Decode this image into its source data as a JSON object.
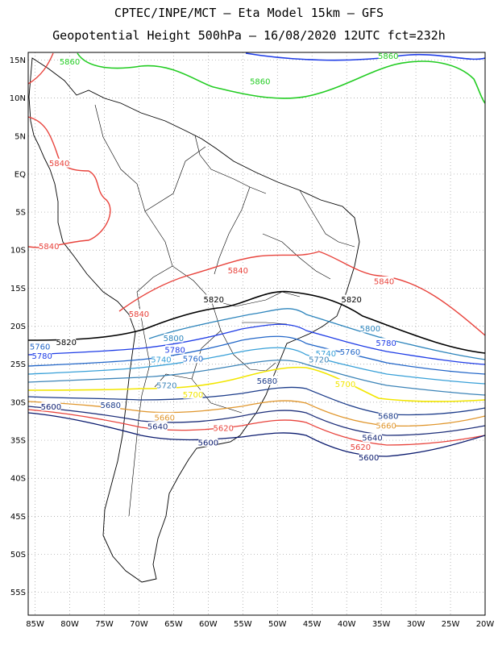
{
  "header": {
    "title_line1": "CPTEC/INPE/MCT  –  Eta Model 15km  –  GFS",
    "title_line2": "Geopotential Height 500hPa  –  16/08/2020 12UTC fct=232h"
  },
  "map": {
    "lon_range": [
      -86,
      -20
    ],
    "lat_range": [
      -58,
      16
    ],
    "lat_ticks": [
      "15N",
      "10N",
      "5N",
      "EQ",
      "5S",
      "10S",
      "15S",
      "20S",
      "25S",
      "30S",
      "35S",
      "40S",
      "45S",
      "50S",
      "55S"
    ],
    "lat_tick_values": [
      15,
      10,
      5,
      0,
      -5,
      -10,
      -15,
      -20,
      -25,
      -30,
      -35,
      -40,
      -45,
      -50,
      -55
    ],
    "lon_ticks": [
      "85W",
      "80W",
      "75W",
      "70W",
      "65W",
      "60W",
      "55W",
      "50W",
      "45W",
      "40W",
      "35W",
      "30W",
      "25W",
      "20W"
    ],
    "lon_tick_values": [
      -85,
      -80,
      -75,
      -70,
      -65,
      -60,
      -55,
      -50,
      -45,
      -40,
      -35,
      -30,
      -25,
      -20
    ],
    "grid": "dotted",
    "contour_colors": {
      "5600": "#0a1a6e",
      "5620": "#e8433c",
      "5640": "#1e2f7a",
      "5660": "#e0962c",
      "5680": "#1c3c8a",
      "5700": "#f2e600",
      "5720": "#3c84b8",
      "5740": "#38a0d8",
      "5760": "#2266c8",
      "5780": "#1e3ce6",
      "5800": "#2c84bc",
      "5820": "#000000",
      "5840": "#e8433c",
      "5860": "#22cc22",
      "5880": "#1e3ce6"
    },
    "contours": [
      {
        "level": "5860",
        "labels": [
          {
            "text": "5860",
            "lon": -80.0,
            "lat": 14.8
          },
          {
            "text": "5860",
            "lon": -52.5,
            "lat": 12.2
          },
          {
            "text": "5860",
            "lon": -34.0,
            "lat": 15.5
          }
        ]
      },
      {
        "level": "5840",
        "labels": [
          {
            "text": "5840",
            "lon": -81.5,
            "lat": 1.4
          },
          {
            "text": "5840",
            "lon": -83.0,
            "lat": -9.5
          },
          {
            "text": "5840",
            "lon": -55.7,
            "lat": -12.7
          },
          {
            "text": "5840",
            "lon": -34.6,
            "lat": -14.1
          },
          {
            "text": "5840",
            "lon": -70.0,
            "lat": -18.4
          }
        ]
      },
      {
        "level": "5820",
        "labels": [
          {
            "text": "5820",
            "lon": -59.2,
            "lat": -16.5
          },
          {
            "text": "5820",
            "lon": -39.3,
            "lat": -16.5
          },
          {
            "text": "5820",
            "lon": -80.5,
            "lat": -22.1
          }
        ]
      },
      {
        "level": "5800",
        "labels": [
          {
            "text": "5800",
            "lon": -65.0,
            "lat": -21.6
          },
          {
            "text": "5800",
            "lon": -36.6,
            "lat": -20.3
          }
        ]
      },
      {
        "level": "5780",
        "labels": [
          {
            "text": "5780",
            "lon": -84.0,
            "lat": -23.9
          },
          {
            "text": "5780",
            "lon": -64.8,
            "lat": -23.1
          },
          {
            "text": "5780",
            "lon": -34.3,
            "lat": -22.2
          }
        ]
      },
      {
        "level": "5760",
        "labels": [
          {
            "text": "5760",
            "lon": -84.3,
            "lat": -22.7
          },
          {
            "text": "5760",
            "lon": -62.2,
            "lat": -24.3
          },
          {
            "text": "5760",
            "lon": -39.5,
            "lat": -23.4
          }
        ]
      },
      {
        "level": "5740",
        "labels": [
          {
            "text": "5740",
            "lon": -66.8,
            "lat": -24.4
          },
          {
            "text": "5740",
            "lon": -43.0,
            "lat": -23.6
          }
        ]
      },
      {
        "level": "5720",
        "labels": [
          {
            "text": "5720",
            "lon": -66.0,
            "lat": -27.8
          },
          {
            "text": "5720",
            "lon": -44.0,
            "lat": -24.4
          }
        ]
      },
      {
        "level": "5700",
        "labels": [
          {
            "text": "5700",
            "lon": -62.2,
            "lat": -29.0
          },
          {
            "text": "5700",
            "lon": -40.2,
            "lat": -27.6
          }
        ]
      },
      {
        "level": "5680",
        "labels": [
          {
            "text": "5680",
            "lon": -74.1,
            "lat": -30.4
          },
          {
            "text": "5680",
            "lon": -51.5,
            "lat": -27.2
          },
          {
            "text": "5680",
            "lon": -34.0,
            "lat": -31.8
          }
        ]
      },
      {
        "level": "5660",
        "labels": [
          {
            "text": "5660",
            "lon": -66.3,
            "lat": -32.0
          },
          {
            "text": "5660",
            "lon": -34.3,
            "lat": -33.1
          }
        ]
      },
      {
        "level": "5640",
        "labels": [
          {
            "text": "5640",
            "lon": -67.3,
            "lat": -33.2
          },
          {
            "text": "5640",
            "lon": -36.3,
            "lat": -34.7
          }
        ]
      },
      {
        "level": "5620",
        "labels": [
          {
            "text": "5620",
            "lon": -57.8,
            "lat": -33.4
          },
          {
            "text": "5620",
            "lon": -38.0,
            "lat": -35.9
          }
        ]
      },
      {
        "level": "5600",
        "labels": [
          {
            "text": "5600",
            "lon": -82.7,
            "lat": -30.6
          },
          {
            "text": "5600",
            "lon": -60.0,
            "lat": -35.3
          },
          {
            "text": "5600",
            "lon": -36.8,
            "lat": -37.3
          }
        ]
      }
    ]
  }
}
